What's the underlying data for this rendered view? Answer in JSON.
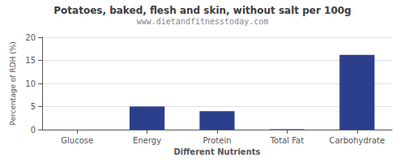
{
  "chart_data": {
    "type": "bar",
    "title": "Potatoes, baked, flesh and skin, without salt per 100g",
    "subtitle": "www.dietandfitnesstoday.com",
    "xlabel": "Different Nutrients",
    "ylabel": "Percentage of RDH (%)",
    "categories": [
      "Glucose",
      "Energy",
      "Protein",
      "Total Fat",
      "Carbohydrate"
    ],
    "values": [
      0.0,
      5.0,
      4.0,
      0.1,
      16.2
    ],
    "color": "#2b3f8c",
    "ylim": [
      0,
      20
    ],
    "yticks": [
      0,
      5,
      10,
      15,
      20
    ],
    "grid": true
  }
}
